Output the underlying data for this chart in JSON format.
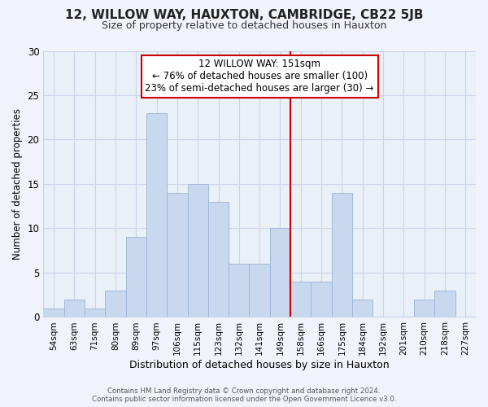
{
  "title": "12, WILLOW WAY, HAUXTON, CAMBRIDGE, CB22 5JB",
  "subtitle": "Size of property relative to detached houses in Hauxton",
  "xlabel": "Distribution of detached houses by size in Hauxton",
  "ylabel": "Number of detached properties",
  "bin_labels": [
    "54sqm",
    "63sqm",
    "71sqm",
    "80sqm",
    "89sqm",
    "97sqm",
    "106sqm",
    "115sqm",
    "123sqm",
    "132sqm",
    "141sqm",
    "149sqm",
    "158sqm",
    "166sqm",
    "175sqm",
    "184sqm",
    "192sqm",
    "201sqm",
    "210sqm",
    "218sqm",
    "227sqm"
  ],
  "bar_heights": [
    1,
    2,
    1,
    3,
    9,
    23,
    14,
    15,
    13,
    6,
    6,
    10,
    4,
    4,
    14,
    2,
    0,
    0,
    2,
    3,
    0
  ],
  "bar_color": "#c8d8ee",
  "bar_edge_color": "#9ab4d4",
  "vline_index": 11,
  "vline_color": "#cc0000",
  "ylim": [
    0,
    30
  ],
  "yticks": [
    0,
    5,
    10,
    15,
    20,
    25,
    30
  ],
  "annotation_title": "12 WILLOW WAY: 151sqm",
  "annotation_line1": "← 76% of detached houses are smaller (100)",
  "annotation_line2": "23% of semi-detached houses are larger (30) →",
  "annotation_box_color": "#ffffff",
  "annotation_box_edge": "#cc0000",
  "footer_line1": "Contains HM Land Registry data © Crown copyright and database right 2024.",
  "footer_line2": "Contains public sector information licensed under the Open Government Licence v3.0.",
  "bg_color": "#f0f4fa",
  "plot_bg_color": "#eaf0f8",
  "grid_color": "#c8d4e8",
  "title_fontsize": 11,
  "subtitle_fontsize": 9,
  "annotation_fontsize": 8.5,
  "xlabel_fontsize": 9,
  "ylabel_fontsize": 8.5
}
